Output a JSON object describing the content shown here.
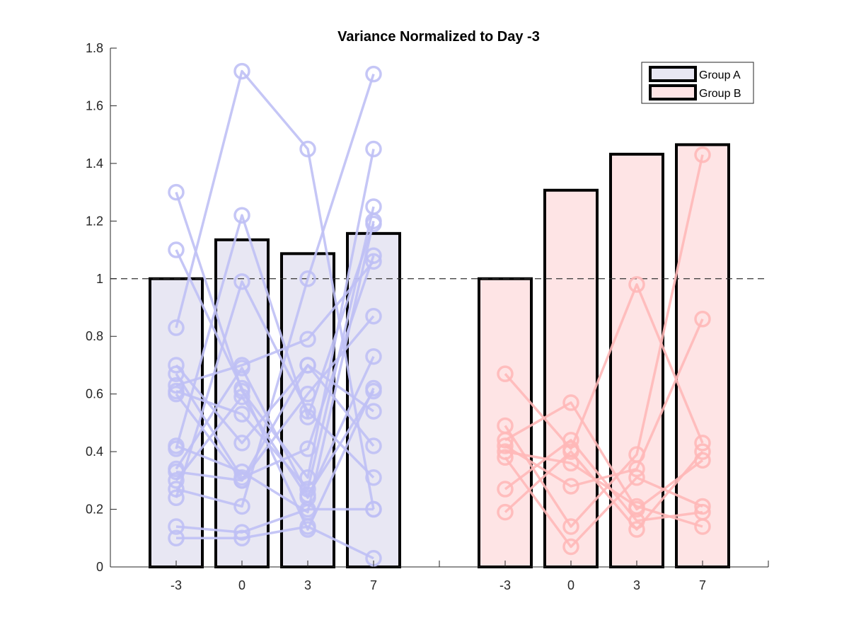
{
  "chart_data": {
    "type": "bar",
    "title": "Variance Normalized to Day -3",
    "xlabel": "",
    "ylabel": "",
    "ylim": [
      0,
      1.8
    ],
    "yticks": [
      "0",
      "0.2",
      "0.4",
      "0.6",
      "0.8",
      "1",
      "1.2",
      "1.4",
      "1.6",
      "1.8"
    ],
    "categories": [
      "-3",
      "0",
      "3",
      "7"
    ],
    "reference_line": 1,
    "legend_position": "top-right",
    "grid": false,
    "groups": [
      {
        "name": "Group A",
        "bar_fill": "#e8e7f3",
        "point_color": "#bfc0f5",
        "values": [
          1.0,
          1.135,
          1.087,
          1.157
        ],
        "subjects": [
          [
            1.3,
            0.61,
            0.31,
            1.45
          ],
          [
            1.1,
            0.62,
            0.13,
            0.62
          ],
          [
            0.83,
            1.72,
            1.45,
            0.2
          ],
          [
            0.7,
            0.43,
            0.7,
            0.54
          ],
          [
            0.67,
            0.31,
            0.41,
            1.08
          ],
          [
            0.63,
            0.7,
            0.79,
            1.06
          ],
          [
            0.61,
            0.53,
            0.27,
            1.25
          ],
          [
            0.6,
            0.3,
            0.6,
            0.87
          ],
          [
            0.42,
            0.33,
            0.19,
            1.2
          ],
          [
            0.41,
            1.22,
            0.52,
            1.19
          ],
          [
            0.34,
            0.69,
            0.25,
            0.61
          ],
          [
            0.33,
            0.3,
            0.7,
            0.42
          ],
          [
            0.3,
            0.59,
            0.24,
            0.73
          ],
          [
            0.27,
            0.21,
            1.0,
            1.71
          ],
          [
            0.24,
            0.99,
            0.54,
            0.31
          ],
          [
            0.14,
            0.12,
            0.2,
            0.2
          ],
          [
            0.1,
            0.1,
            0.14,
            0.03
          ]
        ]
      },
      {
        "name": "Group B",
        "bar_fill": "#fee4e5",
        "point_color": "#ffb8b8",
        "values": [
          1.0,
          1.307,
          1.432,
          1.465
        ],
        "subjects": [
          [
            0.67,
            0.41,
            0.98,
            0.43
          ],
          [
            0.49,
            0.14,
            0.39,
            1.43
          ],
          [
            0.44,
            0.57,
            0.2,
            0.37
          ],
          [
            0.42,
            0.28,
            0.34,
            0.86
          ],
          [
            0.4,
            0.36,
            0.21,
            0.14
          ],
          [
            0.38,
            0.07,
            0.31,
            0.21
          ],
          [
            0.27,
            0.44,
            0.16,
            0.19
          ],
          [
            0.19,
            0.4,
            0.13,
            0.4
          ]
        ]
      }
    ]
  }
}
